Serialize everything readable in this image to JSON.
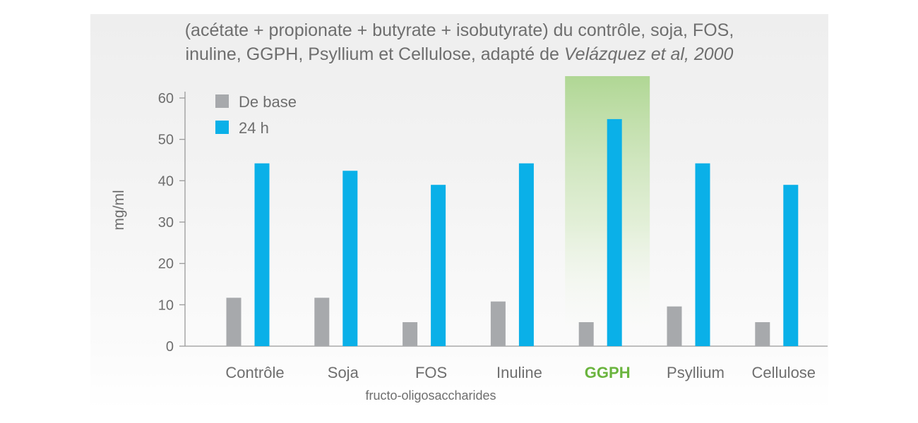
{
  "chart_data": {
    "type": "bar",
    "title_line1": "(acétate + propionate + butyrate + isobutyrate) du contrôle, soja, FOS,",
    "title_line2_plain": "inuline, GGPH, Psyllium et Cellulose, adapté de ",
    "title_line2_italic": "Velázquez et al, 2000",
    "ylabel": "mg/ml",
    "xlabel": "fructo-oligosaccharides",
    "ylim": [
      0,
      65
    ],
    "yticks": [
      0,
      10,
      20,
      30,
      40,
      50,
      60
    ],
    "categories": [
      "Contrôle",
      "Soja",
      "FOS",
      "Inuline",
      "GGPH",
      "Psyllium",
      "Cellulose"
    ],
    "highlight_category": "GGPH",
    "highlight_color": "#6ab43e",
    "legend_position": "top-left",
    "grid": false,
    "series": [
      {
        "name": "De base",
        "color": "#a7a9ac",
        "values": [
          11.7,
          11.7,
          5.8,
          10.8,
          5.8,
          9.6,
          5.8
        ]
      },
      {
        "name": "24 h",
        "color": "#0ab0e8",
        "values": [
          44.2,
          42.4,
          39.0,
          44.2,
          54.9,
          44.2,
          39.0
        ]
      }
    ]
  }
}
